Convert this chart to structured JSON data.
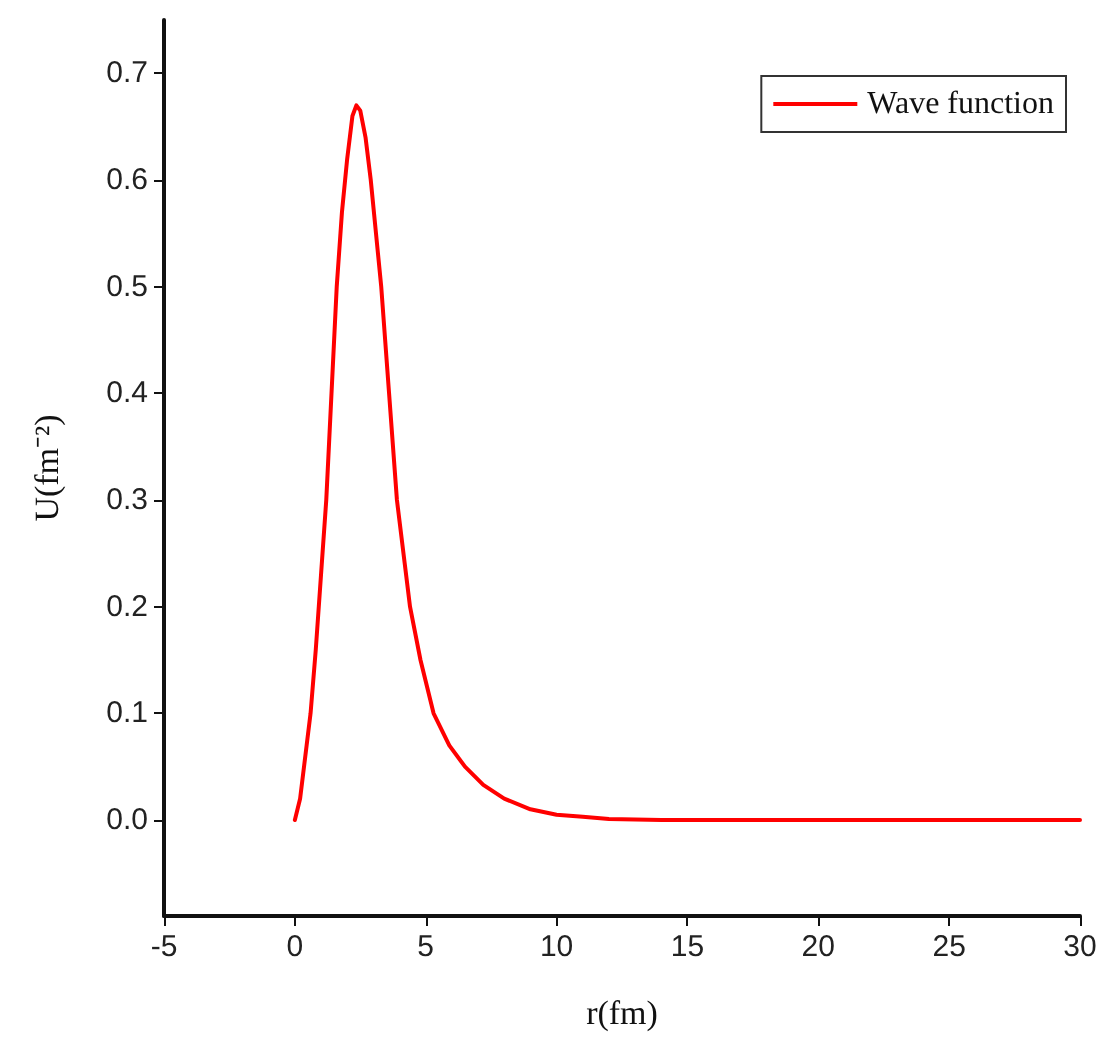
{
  "chart_data": {
    "type": "line",
    "xlabel": "r(fm)",
    "ylabel": "U(fm⁻²)",
    "xlim": [
      -5,
      30
    ],
    "xticks": [
      -5,
      0,
      5,
      10,
      15,
      20,
      25,
      30
    ],
    "ylim": [
      -0.09,
      0.75
    ],
    "yticks": [
      {
        "value": 0,
        "label": "0.0"
      },
      0.1,
      0.2,
      0.3,
      0.4,
      0.5,
      0.6,
      0.7
    ],
    "grid": false,
    "legend": "top right",
    "marker": "none",
    "line_style": "solid",
    "series": [
      {
        "name": "Wave function",
        "color": "#ff0000",
        "x": [
          0,
          0.2,
          0.4,
          0.6,
          0.8,
          1.0,
          1.2,
          1.4,
          1.6,
          1.8,
          2.0,
          2.2,
          2.35,
          2.5,
          2.7,
          2.9,
          3.1,
          3.3,
          3.6,
          3.9,
          4.2,
          4.4,
          4.8,
          5.3,
          5.9,
          6.5,
          7.2,
          8,
          9,
          10,
          11,
          12,
          14,
          16,
          20,
          25,
          30
        ],
        "values": [
          0,
          0.02,
          0.06,
          0.1,
          0.16,
          0.23,
          0.3,
          0.4,
          0.5,
          0.57,
          0.62,
          0.66,
          0.67,
          0.665,
          0.64,
          0.6,
          0.55,
          0.5,
          0.4,
          0.3,
          0.24,
          0.2,
          0.15,
          0.1,
          0.07,
          0.05,
          0.033,
          0.02,
          0.01,
          0.005,
          0.003,
          0.001,
          0,
          0,
          0,
          0,
          0
        ]
      }
    ]
  }
}
